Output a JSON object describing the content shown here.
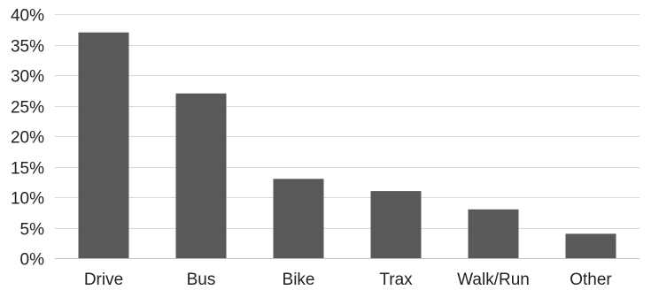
{
  "chart_data": {
    "type": "bar",
    "title": "",
    "xlabel": "",
    "ylabel": "",
    "categories": [
      "Drive",
      "Bus",
      "Bike",
      "Trax",
      "Walk/Run",
      "Other"
    ],
    "values": [
      37,
      27,
      13,
      11,
      8,
      4
    ],
    "ylim": [
      0,
      40
    ],
    "yticks": [
      0,
      5,
      10,
      15,
      20,
      25,
      30,
      35,
      40
    ],
    "ytick_labels": [
      "0%",
      "5%",
      "10%",
      "15%",
      "20%",
      "25%",
      "30%",
      "35%",
      "40%"
    ],
    "grid": true,
    "legend": "none",
    "bar_color": "#595959",
    "grid_color": "#d9d9d9",
    "axis_color": "#bfbfbf"
  }
}
